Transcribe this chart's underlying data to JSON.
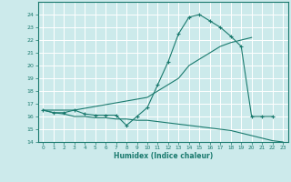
{
  "xlabel": "Humidex (Indice chaleur)",
  "bg_color": "#cceaeb",
  "grid_color": "#ffffff",
  "line_color": "#1a7a6e",
  "ylim": [
    14,
    25
  ],
  "xlim": [
    -0.5,
    23.5
  ],
  "yticks": [
    14,
    15,
    16,
    17,
    18,
    19,
    20,
    21,
    22,
    23,
    24
  ],
  "xticks": [
    0,
    1,
    2,
    3,
    4,
    5,
    6,
    7,
    8,
    9,
    10,
    11,
    12,
    13,
    14,
    15,
    16,
    17,
    18,
    19,
    20,
    21,
    22,
    23
  ],
  "line1_x": [
    0,
    1,
    2,
    3,
    4,
    5,
    6,
    7,
    8,
    9,
    10,
    11,
    12,
    13,
    14,
    15,
    16,
    17,
    18,
    19,
    20,
    21,
    22
  ],
  "line1_y": [
    16.5,
    16.3,
    16.3,
    16.5,
    16.2,
    16.1,
    16.1,
    16.1,
    15.3,
    16.0,
    16.7,
    18.5,
    20.3,
    22.5,
    23.8,
    24.0,
    23.5,
    23.0,
    22.3,
    21.5,
    16.0,
    16.0,
    16.0
  ],
  "line2_x": [
    0,
    3,
    10,
    13,
    14,
    15,
    16,
    17,
    18,
    19,
    20
  ],
  "line2_y": [
    16.5,
    16.5,
    17.5,
    19.0,
    20.0,
    20.5,
    21.0,
    21.5,
    21.8,
    22.0,
    22.2
  ],
  "line3_x": [
    0,
    1,
    2,
    3,
    4,
    5,
    6,
    7,
    8,
    9,
    10,
    11,
    12,
    13,
    14,
    15,
    16,
    17,
    18,
    19,
    20,
    21,
    22,
    23
  ],
  "line3_y": [
    16.5,
    16.3,
    16.2,
    16.0,
    16.0,
    15.9,
    15.9,
    15.8,
    15.8,
    15.7,
    15.7,
    15.6,
    15.5,
    15.4,
    15.3,
    15.2,
    15.1,
    15.0,
    14.9,
    14.7,
    14.5,
    14.3,
    14.1,
    14.0
  ]
}
